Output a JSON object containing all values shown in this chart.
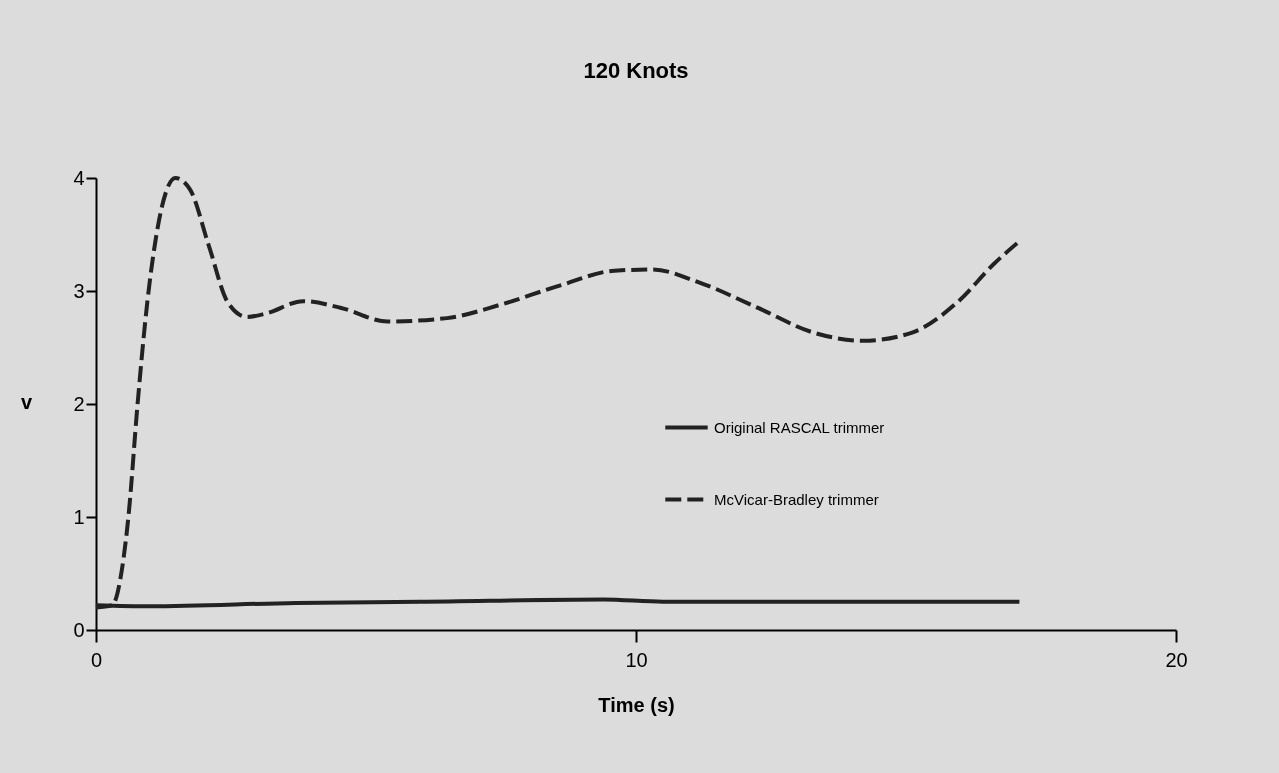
{
  "chart_data": {
    "type": "line",
    "title": "120 Knots",
    "xlabel": "Time (s)",
    "ylabel": "v",
    "xlim": [
      0,
      20
    ],
    "xticks": [
      0,
      10,
      20
    ],
    "ylim": [
      0,
      4
    ],
    "yticks": [
      0,
      1,
      2,
      3,
      4
    ],
    "legend": "right",
    "marker": "none",
    "series": [
      {
        "name": "Original RASCAL trimmer",
        "color": "#222222",
        "line_style": "solid",
        "x": [
          0,
          1,
          3.7,
          6,
          9.4,
          10.5,
          12.3,
          14,
          17.1
        ],
        "values": [
          0.22,
          0.21,
          0.24,
          0.25,
          0.27,
          0.25,
          0.25,
          0.25,
          0.25
        ]
      },
      {
        "name": "McVicar-Bradley trimmer",
        "color": "#222222",
        "line_style": "dashed",
        "x": [
          0,
          0.3,
          0.5,
          0.6,
          0.77,
          0.95,
          1.12,
          1.47,
          1.74,
          2.09,
          2.44,
          2.8,
          3.14,
          3.84,
          4.54,
          5.4,
          6.5,
          7.5,
          8.6,
          9.6,
          10.3,
          11.2,
          12.26,
          13.3,
          14.2,
          15.1,
          15.95,
          16.65,
          17.1
        ],
        "values": [
          0.2,
          0.22,
          0.6,
          1.0,
          2.0,
          2.9,
          3.5,
          4.0,
          3.9,
          3.4,
          2.9,
          2.77,
          2.8,
          2.91,
          2.85,
          2.73,
          2.76,
          2.88,
          3.05,
          3.18,
          3.19,
          3.07,
          2.85,
          2.63,
          2.56,
          2.63,
          2.9,
          3.25,
          3.44
        ]
      }
    ]
  }
}
